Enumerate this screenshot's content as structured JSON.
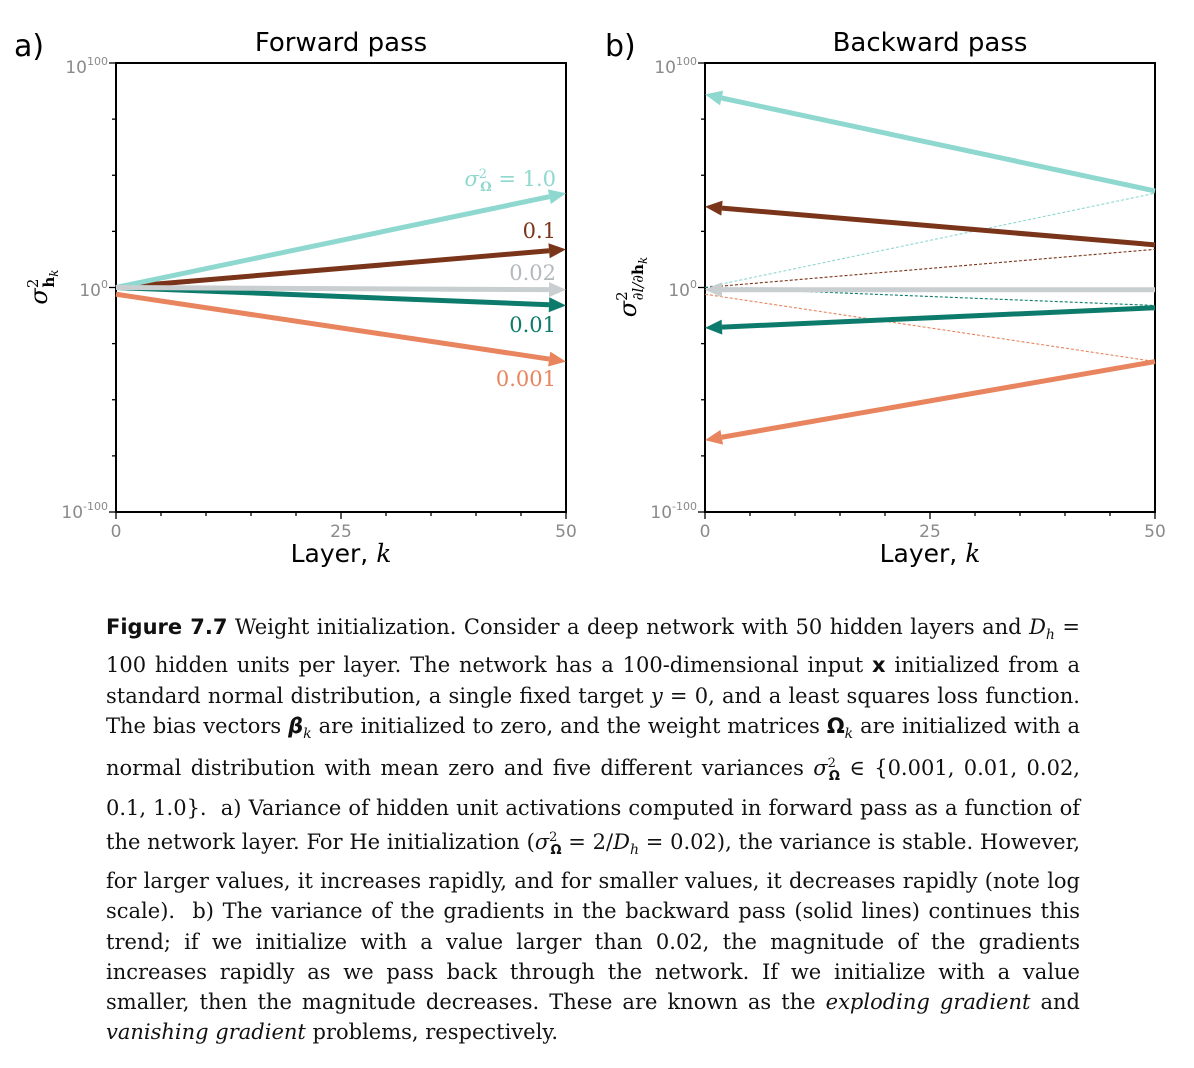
{
  "panels": [
    {
      "letter": "a)",
      "title": "Forward pass",
      "ylabel": "σ²_{h_k}",
      "xlabel_text": "Layer,",
      "xlabel_var": "k",
      "yticks": [
        {
          "base": "10",
          "exp": "100"
        },
        {
          "base": "10",
          "exp": "0"
        },
        {
          "base": "10",
          "exp": "-100"
        }
      ],
      "xticks": [
        "0",
        "25",
        "50"
      ],
      "series_labels": [
        "σ²Ω=1.0",
        "0.1",
        "0.02",
        "0.01",
        "0.001"
      ]
    },
    {
      "letter": "b)",
      "title": "Backward pass",
      "ylabel": "σ²_{∂l/∂h_k}",
      "xlabel_text": "Layer,",
      "xlabel_var": "k",
      "yticks": [
        {
          "base": "10",
          "exp": "100"
        },
        {
          "base": "10",
          "exp": "0"
        },
        {
          "base": "10",
          "exp": "-100"
        }
      ],
      "xticks": [
        "0",
        "25",
        "50"
      ]
    }
  ],
  "chart_data": [
    {
      "type": "line",
      "title": "Forward pass",
      "xlabel": "Layer, k",
      "ylabel": "σ²_{h_k}",
      "yscale": "log",
      "xlim": [
        0,
        50
      ],
      "ylim_log10": [
        -100,
        100
      ],
      "grid": false,
      "series": [
        {
          "name": "σ²Ω=1.0",
          "color": "#8fd8d0",
          "x": [
            0,
            50
          ],
          "log10_y": [
            0,
            42
          ]
        },
        {
          "name": "0.1",
          "color": "#7a3419",
          "x": [
            0,
            50
          ],
          "log10_y": [
            0,
            17
          ]
        },
        {
          "name": "0.02",
          "color": "#c9ced0",
          "x": [
            0,
            50
          ],
          "log10_y": [
            0,
            -1
          ]
        },
        {
          "name": "0.01",
          "color": "#0d7b6b",
          "x": [
            0,
            50
          ],
          "log10_y": [
            0,
            -8
          ]
        },
        {
          "name": "0.001",
          "color": "#e8845e",
          "x": [
            0,
            50
          ],
          "log10_y": [
            -3,
            -33
          ]
        }
      ]
    },
    {
      "type": "line",
      "title": "Backward pass",
      "xlabel": "Layer, k",
      "ylabel": "σ²_{∂l/∂h_k}",
      "yscale": "log",
      "xlim": [
        0,
        50
      ],
      "ylim_log10": [
        -100,
        100
      ],
      "grid": false,
      "series": [
        {
          "color": "#8fd8d0",
          "x": [
            50,
            0
          ],
          "log10_y": [
            43,
            86
          ]
        },
        {
          "color": "#7a3419",
          "x": [
            50,
            0
          ],
          "log10_y": [
            19,
            36
          ]
        },
        {
          "color": "#c9ced0",
          "x": [
            50,
            0
          ],
          "log10_y": [
            -1,
            -1
          ]
        },
        {
          "color": "#0d7b6b",
          "x": [
            50,
            0
          ],
          "log10_y": [
            -9,
            -18
          ]
        },
        {
          "color": "#e8845e",
          "x": [
            50,
            0
          ],
          "log10_y": [
            -33,
            -68
          ]
        }
      ],
      "forward_reference_dashed": true
    }
  ],
  "caption": {
    "label": "Figure 7.7",
    "text_html": " Weight initialization. Consider a deep network with 50 hidden layers and <i>D<sub style=\"font-size:14px\">h</sub></i> = 100 hidden units per layer. The network has a 100-dimensional input <b>x</b> initialized from a standard normal distribution, a single fixed target <i>y</i> = 0, and a least squares loss function. The bias vectors <b><i>β</i></b><sub style=\"font-size:14px\"><i>k</i></sub> are initialized to zero, and the weight matrices <b>Ω</b><sub style=\"font-size:14px\"><i>k</i></sub> are initialized with a normal distribution with mean zero and five different variances <i>σ</i><sup style=\"font-size:13px\">2</sup><sub style=\"font-size:13px;margin-left:-7px\"><b>Ω</b></sub> ∈ {0.001, 0.01, 0.02, 0.1, 1.0}. &nbsp;a) Variance of hidden unit activations computed in forward pass as a function of the network layer. For He initialization (<i>σ</i><sup style=\"font-size:13px\">2</sup><sub style=\"font-size:13px;margin-left:-7px\"><b>Ω</b></sub> = 2/<i>D<sub style=\"font-size:14px\">h</sub></i> = 0.02), the variance is stable. However, for larger values, it increases rapidly, and for smaller values, it decreases rapidly (note log scale). &nbsp;b) The variance of the gradients in the backward pass (solid lines) continues this trend; if we initialize with a value larger than 0.02, the magnitude of the gradients increases rapidly as we pass back through the network. If we initialize with a value smaller, then the magnitude decreases. These are known as the <i>exploding gradient</i> and <i>vanishing gradient</i> problems, respectively."
  }
}
